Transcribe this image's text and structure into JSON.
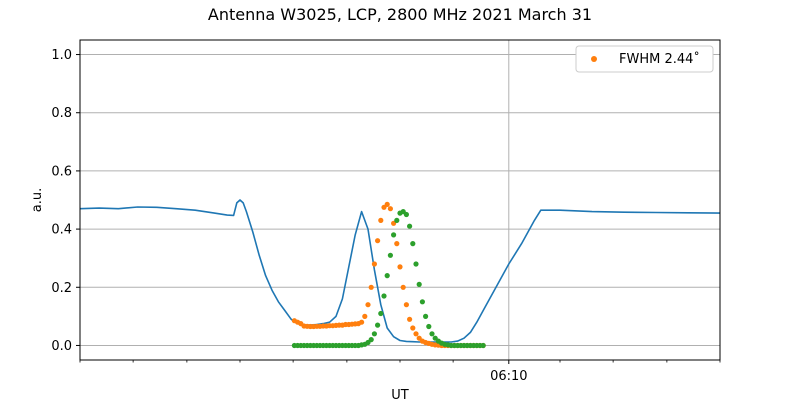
{
  "chart_data": {
    "type": "line",
    "title": "Antenna W3025, LCP, 2800 MHz 2021 March 31",
    "xlabel": "UT",
    "ylabel": "a.u.",
    "ylim": [
      -0.05,
      1.05
    ],
    "yticks": [
      0.0,
      0.2,
      0.4,
      0.6,
      0.8,
      1.0
    ],
    "ytick_labels": [
      "0.0",
      "0.2",
      "0.4",
      "0.6",
      "0.8",
      "1.0"
    ],
    "xlim": [
      0,
      100
    ],
    "x_major_ticks": [
      {
        "x": 67,
        "label": "06:10"
      }
    ],
    "x_minor_ticks": [
      0,
      8.3,
      16.7,
      25,
      33.3,
      41.7,
      50,
      58.3,
      75,
      83.3,
      91.7,
      100
    ],
    "grid": true,
    "legend_position": "upper right",
    "legend": [
      {
        "label": "FWHM 2.44$^\\circ$",
        "display": "FWHM 2.44˚",
        "color": "#ff7f0e",
        "marker": "dot"
      }
    ],
    "colors": {
      "blue": "#1f77b4",
      "orange": "#ff7f0e",
      "green": "#2ca02c",
      "grid": "#b0b0b0"
    },
    "series": [
      {
        "kind": "line",
        "color": "#1f77b4",
        "x": [
          0,
          3,
          6,
          9,
          12,
          15,
          18,
          21,
          23,
          24,
          24.5,
          25,
          25.5,
          26,
          27,
          28,
          29,
          30,
          31,
          32,
          33,
          34,
          35,
          36,
          37,
          38,
          39,
          40,
          41,
          42,
          43,
          44,
          45,
          46,
          47,
          48,
          49,
          50,
          51,
          52,
          53,
          54,
          55,
          56,
          57,
          58,
          59,
          60,
          61,
          62,
          63,
          64,
          65,
          66,
          67,
          68,
          69,
          70,
          71,
          72,
          75,
          80,
          85,
          90,
          95,
          100
        ],
        "y": [
          0.47,
          0.472,
          0.47,
          0.476,
          0.475,
          0.47,
          0.465,
          0.455,
          0.448,
          0.447,
          0.49,
          0.5,
          0.49,
          0.46,
          0.39,
          0.31,
          0.24,
          0.19,
          0.15,
          0.12,
          0.09,
          0.075,
          0.07,
          0.07,
          0.072,
          0.075,
          0.08,
          0.1,
          0.16,
          0.27,
          0.38,
          0.46,
          0.4,
          0.26,
          0.14,
          0.06,
          0.03,
          0.017,
          0.014,
          0.013,
          0.012,
          0.012,
          0.012,
          0.012,
          0.012,
          0.012,
          0.015,
          0.025,
          0.045,
          0.08,
          0.12,
          0.16,
          0.2,
          0.24,
          0.28,
          0.315,
          0.35,
          0.39,
          0.43,
          0.465,
          0.465,
          0.46,
          0.458,
          0.457,
          0.456,
          0.455
        ]
      },
      {
        "kind": "scatter",
        "color": "#ff7f0e",
        "x": [
          33.5,
          34,
          34.5,
          35,
          35.5,
          36,
          36.5,
          37,
          37.5,
          38,
          38.5,
          39,
          39.5,
          40,
          40.5,
          41,
          41.5,
          42,
          42.5,
          43,
          43.5,
          44,
          44.5,
          45,
          45.5,
          46,
          46.5,
          47,
          47.5,
          48,
          48.5,
          49,
          49.5,
          50,
          50.5,
          51,
          51.5,
          52,
          52.5,
          53,
          53.5,
          54,
          54.5,
          55,
          55.5,
          56,
          56.5,
          57,
          57.5,
          58,
          58.5,
          59,
          59.5,
          60,
          60.5,
          61,
          61.5,
          62,
          62.5,
          63
        ],
        "y": [
          0.085,
          0.08,
          0.075,
          0.067,
          0.066,
          0.065,
          0.065,
          0.066,
          0.066,
          0.067,
          0.067,
          0.068,
          0.068,
          0.069,
          0.07,
          0.07,
          0.072,
          0.072,
          0.073,
          0.074,
          0.075,
          0.08,
          0.1,
          0.14,
          0.2,
          0.28,
          0.36,
          0.43,
          0.475,
          0.485,
          0.47,
          0.42,
          0.35,
          0.27,
          0.2,
          0.14,
          0.09,
          0.06,
          0.04,
          0.025,
          0.015,
          0.01,
          0.007,
          0.004,
          0.002,
          0.001,
          0.0,
          0.0,
          0.0,
          0.0,
          0.0,
          0.0,
          0.0,
          0.0,
          0.0,
          0.0,
          0.0,
          0.0,
          0.0,
          0.0
        ]
      },
      {
        "kind": "scatter",
        "color": "#2ca02c",
        "x": [
          33.5,
          34,
          34.5,
          35,
          35.5,
          36,
          36.5,
          37,
          37.5,
          38,
          38.5,
          39,
          39.5,
          40,
          40.5,
          41,
          41.5,
          42,
          42.5,
          43,
          43.5,
          44,
          44.5,
          45,
          45.5,
          46,
          46.5,
          47,
          47.5,
          48,
          48.5,
          49,
          49.5,
          50,
          50.5,
          51,
          51.5,
          52,
          52.5,
          53,
          53.5,
          54,
          54.5,
          55,
          55.5,
          56,
          56.5,
          57,
          57.5,
          58,
          58.5,
          59,
          59.5,
          60,
          60.5,
          61,
          61.5,
          62,
          62.5,
          63
        ],
        "y": [
          0.0,
          0.0,
          0.0,
          0.0,
          0.0,
          0.0,
          0.0,
          0.0,
          0.0,
          0.0,
          0.0,
          0.0,
          0.0,
          0.0,
          0.0,
          0.0,
          0.0,
          0.0,
          0.0,
          0.0,
          0.0,
          0.002,
          0.004,
          0.01,
          0.02,
          0.04,
          0.07,
          0.11,
          0.17,
          0.24,
          0.31,
          0.38,
          0.43,
          0.455,
          0.46,
          0.45,
          0.41,
          0.35,
          0.28,
          0.21,
          0.15,
          0.1,
          0.065,
          0.04,
          0.025,
          0.015,
          0.008,
          0.004,
          0.002,
          0.0,
          0.0,
          0.0,
          0.0,
          0.0,
          0.0,
          0.0,
          0.0,
          0.0,
          0.0,
          0.0
        ]
      }
    ]
  }
}
